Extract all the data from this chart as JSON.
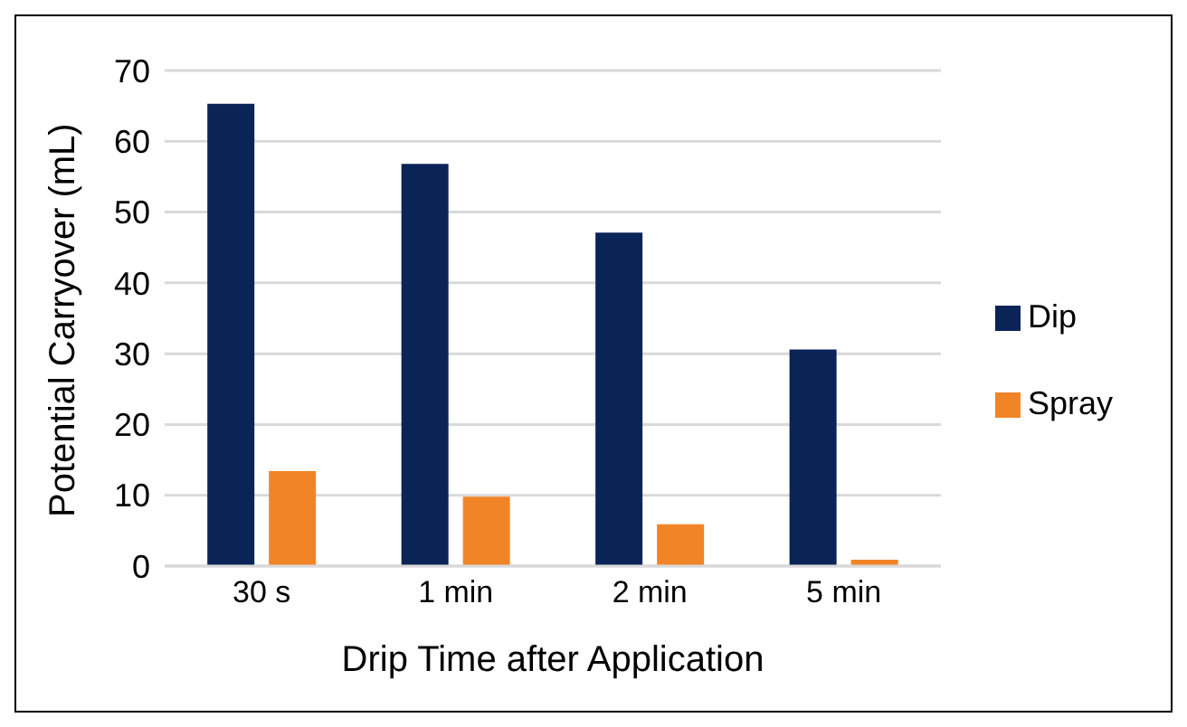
{
  "chart_data": {
    "type": "bar",
    "xlabel": "Drip Time after Application",
    "ylabel": "Potential Carryover (mL)",
    "categories": [
      "30 s",
      "1 min",
      "2 min",
      "5 min"
    ],
    "series": [
      {
        "name": "Dip",
        "color": "#0b2457",
        "values": [
          65.3,
          56.8,
          47.1,
          30.6
        ]
      },
      {
        "name": "Spray",
        "color": "#f28428",
        "values": [
          13.4,
          9.8,
          5.9,
          0.9
        ]
      }
    ],
    "ylim": [
      0,
      70
    ],
    "yticks": [
      0,
      10,
      20,
      30,
      40,
      50,
      60,
      70
    ],
    "grid": "y",
    "legend": "right"
  }
}
